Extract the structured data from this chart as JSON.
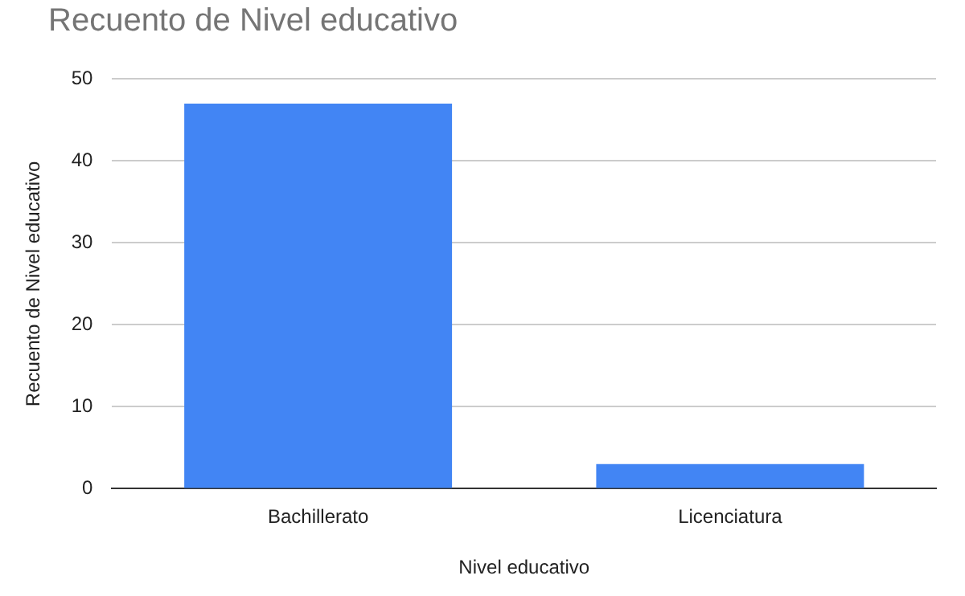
{
  "chart_data": {
    "type": "bar",
    "title": "Recuento de Nivel educativo",
    "xlabel": "Nivel educativo",
    "ylabel": "Recuento de Nivel educativo",
    "categories": [
      "Bachillerato",
      "Licenciatura"
    ],
    "values": [
      47,
      3
    ],
    "color": "#4285f4",
    "ylim": [
      0,
      50
    ],
    "yticks": [
      0,
      10,
      20,
      30,
      40,
      50
    ],
    "grid": "y",
    "legend": false
  }
}
